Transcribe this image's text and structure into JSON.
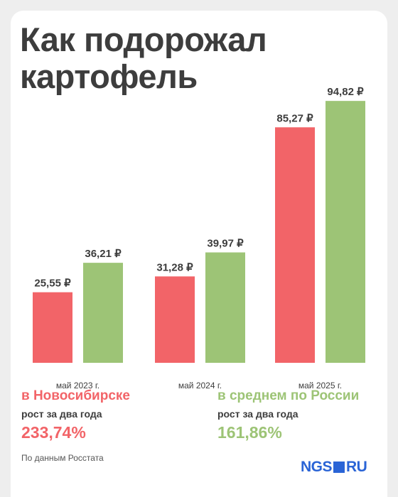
{
  "title_line1": "Как подорожал",
  "title_line2": "картофель",
  "colors": {
    "novosibirsk": "#f26468",
    "russia": "#9dc476",
    "text": "#3d3d3d",
    "brand": "#2a64d6"
  },
  "chart_data": {
    "type": "bar",
    "categories": [
      "май 2023 г.",
      "май 2024 г.",
      "май 2025 г."
    ],
    "series": [
      {
        "values": [
          25.55,
          31.28,
          85.27
        ],
        "labels": [
          "25,55 ₽",
          "31,28 ₽",
          "85,27 ₽"
        ]
      },
      {
        "values": [
          36.21,
          39.97,
          94.82
        ],
        "labels": [
          "36,21 ₽",
          "39,97 ₽",
          "94,82 ₽"
        ]
      }
    ],
    "grid": false,
    "legend": "none"
  },
  "stats": {
    "novosibirsk": {
      "region": "в Новосибирске",
      "growth_label": "рост за два года",
      "growth": "233,74%"
    },
    "russia": {
      "region": "в среднем по России",
      "growth_label": "рост за два года",
      "growth": "161,86%"
    }
  },
  "source": "По данным Росстата",
  "logo": {
    "ngs": "NGS",
    "ru": "RU"
  }
}
